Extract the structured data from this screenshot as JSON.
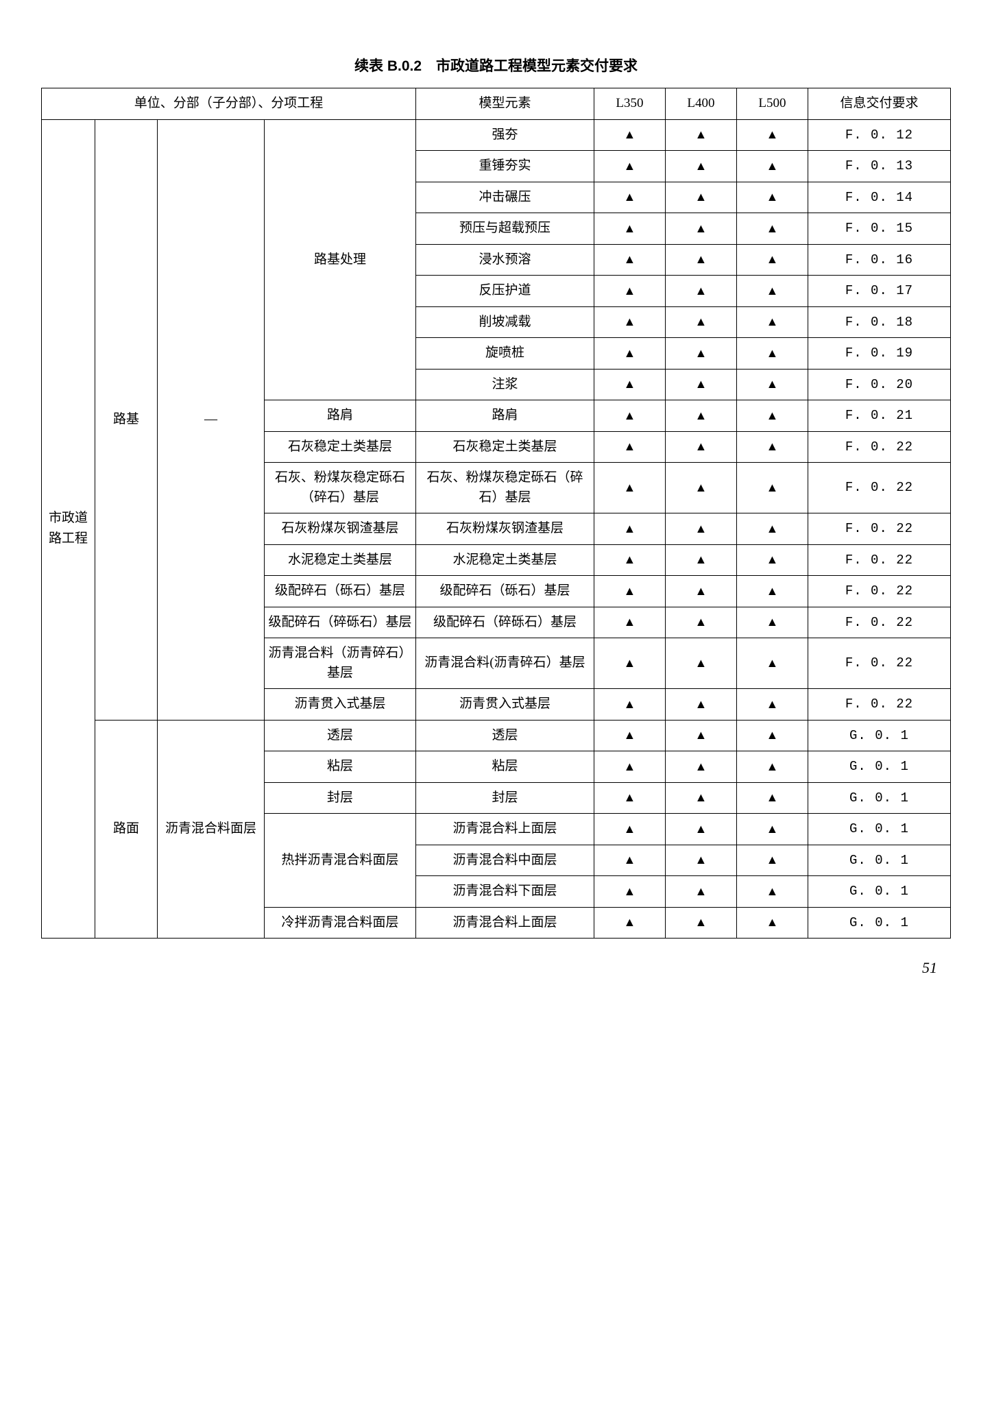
{
  "title": "续表 B.0.2　市政道路工程模型元素交付要求",
  "page_number": "51",
  "triangle": "▲",
  "dash": "—",
  "headers": {
    "h1": "单位、分部（子分部）、分项工程",
    "h2": "模型元素",
    "h3": "L350",
    "h4": "L400",
    "h5": "L500",
    "h6": "信息交付要求"
  },
  "col1": "市政道路工程",
  "col2a": "路基",
  "col2b": "路面",
  "col3b": "沥青混合料面层",
  "groupA": {
    "g1": "路基处理",
    "g2": "路肩",
    "g3": "石灰稳定土类基层",
    "g4": "石灰、粉煤灰稳定砾石（碎石）基层",
    "g5": "石灰粉煤灰钢渣基层",
    "g6": "水泥稳定土类基层",
    "g7": "级配碎石（砾石）基层",
    "g8": "级配碎石（碎砾石）基层",
    "g9": "沥青混合料（沥青碎石）基层",
    "g10": "沥青贯入式基层"
  },
  "groupB": {
    "g1": "透层",
    "g2": "粘层",
    "g3": "封层",
    "g4": "热拌沥青混合料面层",
    "g5": "冷拌沥青混合料面层"
  },
  "rows": [
    {
      "elem": "强夯",
      "req": "F. 0. 12"
    },
    {
      "elem": "重锤夯实",
      "req": "F. 0. 13"
    },
    {
      "elem": "冲击碾压",
      "req": "F. 0. 14"
    },
    {
      "elem": "预压与超载预压",
      "req": "F. 0. 15"
    },
    {
      "elem": "浸水预溶",
      "req": "F. 0. 16"
    },
    {
      "elem": "反压护道",
      "req": "F. 0. 17"
    },
    {
      "elem": "削坡减载",
      "req": "F. 0. 18"
    },
    {
      "elem": "旋喷桩",
      "req": "F. 0. 19"
    },
    {
      "elem": "注浆",
      "req": "F. 0. 20"
    },
    {
      "elem": "路肩",
      "req": "F. 0. 21"
    },
    {
      "elem": "石灰稳定土类基层",
      "req": "F. 0. 22"
    },
    {
      "elem": "石灰、粉煤灰稳定砾石（碎石）基层",
      "req": "F. 0. 22"
    },
    {
      "elem": "石灰粉煤灰钢渣基层",
      "req": "F. 0. 22"
    },
    {
      "elem": "水泥稳定土类基层",
      "req": "F. 0. 22"
    },
    {
      "elem": "级配碎石（砾石）基层",
      "req": "F. 0. 22"
    },
    {
      "elem": "级配碎石（碎砾石）基层",
      "req": "F. 0. 22"
    },
    {
      "elem": "沥青混合料(沥青碎石）基层",
      "req": "F. 0. 22"
    },
    {
      "elem": "沥青贯入式基层",
      "req": "F. 0. 22"
    },
    {
      "elem": "透层",
      "req": "G. 0. 1"
    },
    {
      "elem": "粘层",
      "req": "G. 0. 1"
    },
    {
      "elem": "封层",
      "req": "G. 0. 1"
    },
    {
      "elem": "沥青混合料上面层",
      "req": "G. 0. 1"
    },
    {
      "elem": "沥青混合料中面层",
      "req": "G. 0. 1"
    },
    {
      "elem": "沥青混合料下面层",
      "req": "G. 0. 1"
    },
    {
      "elem": "沥青混合料上面层",
      "req": "G. 0. 1"
    }
  ]
}
